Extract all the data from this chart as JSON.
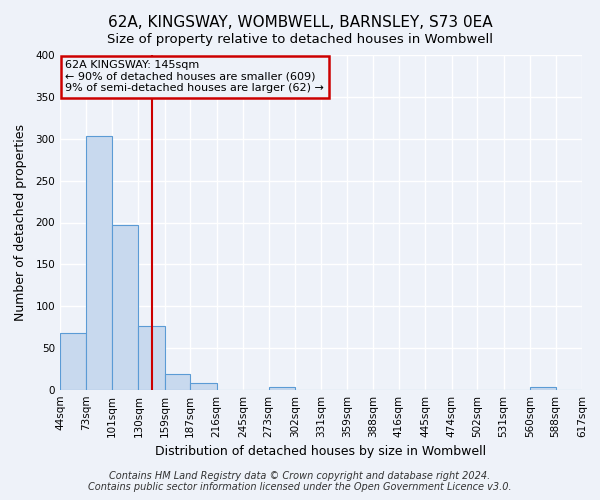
{
  "title": "62A, KINGSWAY, WOMBWELL, BARNSLEY, S73 0EA",
  "subtitle": "Size of property relative to detached houses in Wombwell",
  "xlabel": "Distribution of detached houses by size in Wombwell",
  "ylabel": "Number of detached properties",
  "bin_edges": [
    44,
    73,
    101,
    130,
    159,
    187,
    216,
    245,
    273,
    302,
    331,
    359,
    388,
    416,
    445,
    474,
    502,
    531,
    560,
    588,
    617
  ],
  "bar_heights": [
    68,
    303,
    197,
    77,
    19,
    8,
    0,
    0,
    3,
    0,
    0,
    0,
    0,
    0,
    0,
    0,
    0,
    0,
    3,
    0
  ],
  "bar_color": "#c8d9ee",
  "bar_edge_color": "#5b9bd5",
  "property_line_x": 145,
  "property_line_color": "#cc0000",
  "annotation_line1": "62A KINGSWAY: 145sqm",
  "annotation_line2": "← 90% of detached houses are smaller (609)",
  "annotation_line3": "9% of semi-detached houses are larger (62) →",
  "annotation_box_color": "#cc0000",
  "ylim": [
    0,
    400
  ],
  "yticks": [
    0,
    50,
    100,
    150,
    200,
    250,
    300,
    350,
    400
  ],
  "tick_labels": [
    "44sqm",
    "73sqm",
    "101sqm",
    "130sqm",
    "159sqm",
    "187sqm",
    "216sqm",
    "245sqm",
    "273sqm",
    "302sqm",
    "331sqm",
    "359sqm",
    "388sqm",
    "416sqm",
    "445sqm",
    "474sqm",
    "502sqm",
    "531sqm",
    "560sqm",
    "588sqm",
    "617sqm"
  ],
  "footer1": "Contains HM Land Registry data © Crown copyright and database right 2024.",
  "footer2": "Contains public sector information licensed under the Open Government Licence v3.0.",
  "background_color": "#eef2f9",
  "grid_color": "#ffffff",
  "title_fontsize": 11,
  "axis_label_fontsize": 9,
  "tick_fontsize": 7.5,
  "footer_fontsize": 7
}
